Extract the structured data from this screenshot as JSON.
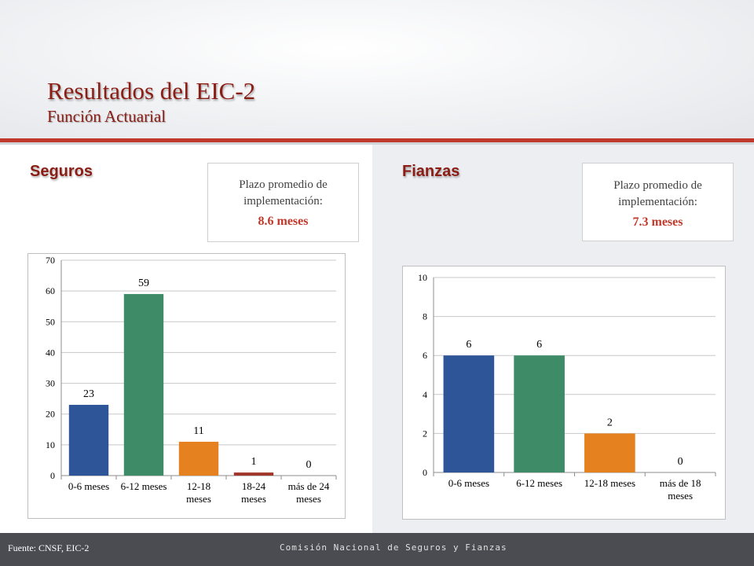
{
  "slide": {
    "title": "Resultados del EIC-2",
    "subtitle": "Función Actuarial"
  },
  "seguros": {
    "heading": "Seguros",
    "box_label": "Plazo promedio de implementación:",
    "box_value": "8.6 meses"
  },
  "fianzas": {
    "heading": "Fianzas",
    "box_label": "Plazo promedio de implementación:",
    "box_value": "7.3 meses"
  },
  "footer": {
    "source": "Fuente: CNSF, EIC-2",
    "org": "Comisión Nacional de Seguros y Fianzas"
  },
  "colors": {
    "title": "#8b1d14",
    "accent": "#c0392b",
    "blue": "#2e5597",
    "green": "#3e8c67",
    "orange": "#e6811f",
    "darkred": "#a0352b"
  },
  "chart_data": [
    {
      "id": "seguros",
      "type": "bar",
      "categories": [
        [
          "0-6 meses"
        ],
        [
          "6-12 meses"
        ],
        [
          "12-18",
          "meses"
        ],
        [
          "18-24",
          "meses"
        ],
        [
          "más de 24",
          "meses"
        ]
      ],
      "values": [
        23,
        59,
        11,
        1,
        0
      ],
      "colors": [
        "#2e5597",
        "#3e8c67",
        "#e6811f",
        "#a0352b",
        "#7f7f7f"
      ],
      "ylim": [
        0,
        70
      ],
      "yticks": [
        0,
        10,
        20,
        30,
        40,
        50,
        60,
        70
      ],
      "grid": true
    },
    {
      "id": "fianzas",
      "type": "bar",
      "categories": [
        [
          "0-6 meses"
        ],
        [
          "6-12 meses"
        ],
        [
          "12-18 meses"
        ],
        [
          "más de 18",
          "meses"
        ]
      ],
      "values": [
        6,
        6,
        2,
        0
      ],
      "colors": [
        "#2e5597",
        "#3e8c67",
        "#e6811f",
        "#7f7f7f"
      ],
      "ylim": [
        0,
        10
      ],
      "yticks": [
        0,
        2,
        4,
        6,
        8,
        10
      ],
      "grid": true
    }
  ]
}
